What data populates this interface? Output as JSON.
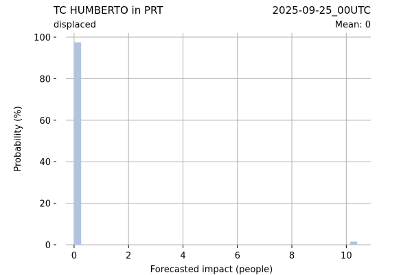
{
  "chart_data": {
    "type": "bar",
    "title": "TC HUMBERTO in PRT",
    "date_label": "2025-09-25_00UTC",
    "date_color": "#ff0000",
    "subtitle": "displaced",
    "mean_label": "Mean: 0",
    "xlabel": "Forecasted impact (people)",
    "ylabel": "Probability (%)",
    "xlim": [
      -0.3,
      10.9
    ],
    "ylim": [
      0,
      102
    ],
    "xticks": [
      0,
      2,
      4,
      6,
      8,
      10
    ],
    "yticks": [
      0,
      20,
      40,
      60,
      80,
      100
    ],
    "grid": true,
    "bar_color": "#b0c4de",
    "bar_width": 0.26,
    "bars": [
      {
        "x": 0.13,
        "value": 97.5
      },
      {
        "x": 10.27,
        "value": 1.5
      }
    ]
  }
}
